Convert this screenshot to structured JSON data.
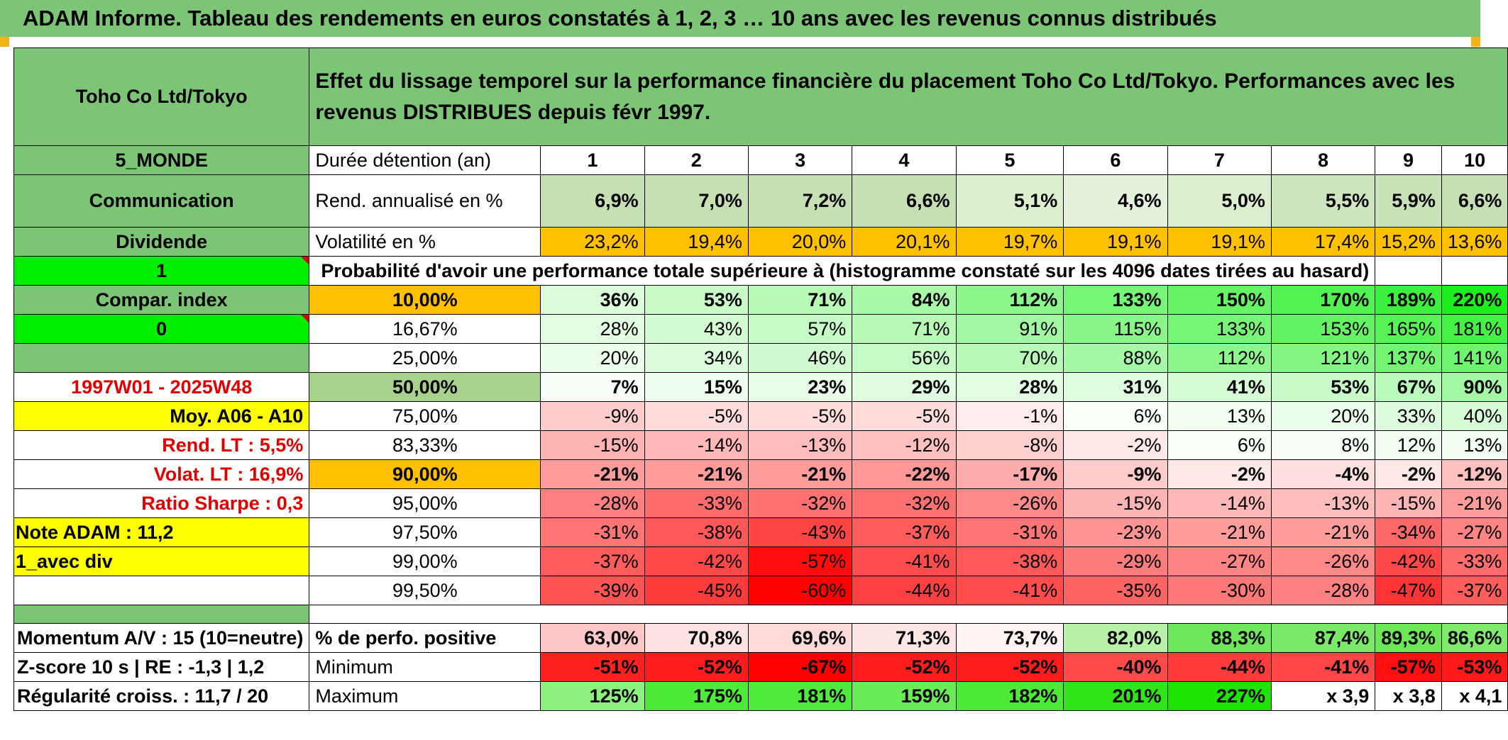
{
  "title": "ADAM Informe. Tableau des rendements en euros constatés à 1, 2, 3 … 10 ans avec les revenus connus distribués",
  "header": {
    "company": "Toho Co Ltd/Tokyo",
    "description": "Effet du lissage temporel sur la performance financière du placement Toho Co Ltd/Tokyo. Performances avec les revenus DISTRIBUES depuis févr 1997."
  },
  "left": {
    "region": "5_MONDE",
    "sector": "Communication",
    "income": "Dividende",
    "selector1": "1",
    "compar_index": "Compar. index",
    "selector2": "0",
    "period": "1997W01 - 2025W48",
    "moy": "Moy. A06 - A10",
    "rend_lt": "Rend. LT :   5,5%",
    "volat_lt": "Volat. LT :   16,9%",
    "sharpe": "Ratio Sharpe :    0,3",
    "note": "Note ADAM : 11,2",
    "variant": "1_avec div",
    "momentum": "Momentum A/V : 15 (10=neutre)",
    "zscore": "Z-score 10 s | RE : -1,3 | 1,2",
    "regularite": "Régularité croiss. : 11,7 / 20"
  },
  "durations_label": "Durée détention (an)",
  "durations": [
    "1",
    "2",
    "3",
    "4",
    "5",
    "6",
    "7",
    "8",
    "9",
    "10"
  ],
  "rend_label": "Rend. annualisé en %",
  "rend": [
    "6,9%",
    "7,0%",
    "7,2%",
    "6,6%",
    "5,1%",
    "4,6%",
    "5,0%",
    "5,5%",
    "5,9%",
    "6,6%"
  ],
  "vol_label": "Volatilité en %",
  "vol": [
    "23,2%",
    "19,4%",
    "20,0%",
    "20,1%",
    "19,7%",
    "19,1%",
    "19,1%",
    "17,4%",
    "15,2%",
    "13,6%"
  ],
  "proba_label": "Probabilité d'avoir une performance totale supérieure à (histogramme constaté sur les 4096 dates tirées au hasard)",
  "quantiles": [
    {
      "p": "10,00%",
      "v": [
        "36%",
        "53%",
        "71%",
        "84%",
        "112%",
        "133%",
        "150%",
        "170%",
        "189%",
        "220%"
      ]
    },
    {
      "p": "16,67%",
      "v": [
        "28%",
        "43%",
        "57%",
        "71%",
        "91%",
        "115%",
        "133%",
        "153%",
        "165%",
        "181%"
      ]
    },
    {
      "p": "25,00%",
      "v": [
        "20%",
        "34%",
        "46%",
        "56%",
        "70%",
        "88%",
        "112%",
        "121%",
        "137%",
        "141%"
      ]
    },
    {
      "p": "50,00%",
      "v": [
        "7%",
        "15%",
        "23%",
        "29%",
        "28%",
        "31%",
        "41%",
        "53%",
        "67%",
        "90%"
      ]
    },
    {
      "p": "75,00%",
      "v": [
        "-9%",
        "-5%",
        "-5%",
        "-5%",
        "-1%",
        "6%",
        "13%",
        "20%",
        "33%",
        "40%"
      ]
    },
    {
      "p": "83,33%",
      "v": [
        "-15%",
        "-14%",
        "-13%",
        "-12%",
        "-8%",
        "-2%",
        "6%",
        "8%",
        "12%",
        "13%"
      ]
    },
    {
      "p": "90,00%",
      "v": [
        "-21%",
        "-21%",
        "-21%",
        "-22%",
        "-17%",
        "-9%",
        "-2%",
        "-4%",
        "-2%",
        "-12%"
      ]
    },
    {
      "p": "95,00%",
      "v": [
        "-28%",
        "-33%",
        "-32%",
        "-32%",
        "-26%",
        "-15%",
        "-14%",
        "-13%",
        "-15%",
        "-21%"
      ]
    },
    {
      "p": "97,50%",
      "v": [
        "-31%",
        "-38%",
        "-43%",
        "-37%",
        "-31%",
        "-23%",
        "-21%",
        "-21%",
        "-34%",
        "-27%"
      ]
    },
    {
      "p": "99,00%",
      "v": [
        "-37%",
        "-42%",
        "-57%",
        "-41%",
        "-38%",
        "-29%",
        "-27%",
        "-26%",
        "-42%",
        "-33%"
      ]
    },
    {
      "p": "99,50%",
      "v": [
        "-39%",
        "-45%",
        "-60%",
        "-44%",
        "-41%",
        "-35%",
        "-30%",
        "-28%",
        "-47%",
        "-37%"
      ]
    }
  ],
  "positive_label": "% de perfo. positive",
  "positive": [
    "63,0%",
    "70,8%",
    "69,6%",
    "71,3%",
    "73,7%",
    "82,0%",
    "88,3%",
    "87,4%",
    "89,3%",
    "86,6%"
  ],
  "min_label": "Minimum",
  "minimum": [
    "-51%",
    "-52%",
    "-67%",
    "-52%",
    "-52%",
    "-40%",
    "-44%",
    "-41%",
    "-57%",
    "-53%"
  ],
  "max_label": "Maximum",
  "maximum": [
    "125%",
    "175%",
    "181%",
    "159%",
    "182%",
    "201%",
    "227%",
    "x 3,9",
    "x 3,8",
    "x 4,1"
  ]
}
